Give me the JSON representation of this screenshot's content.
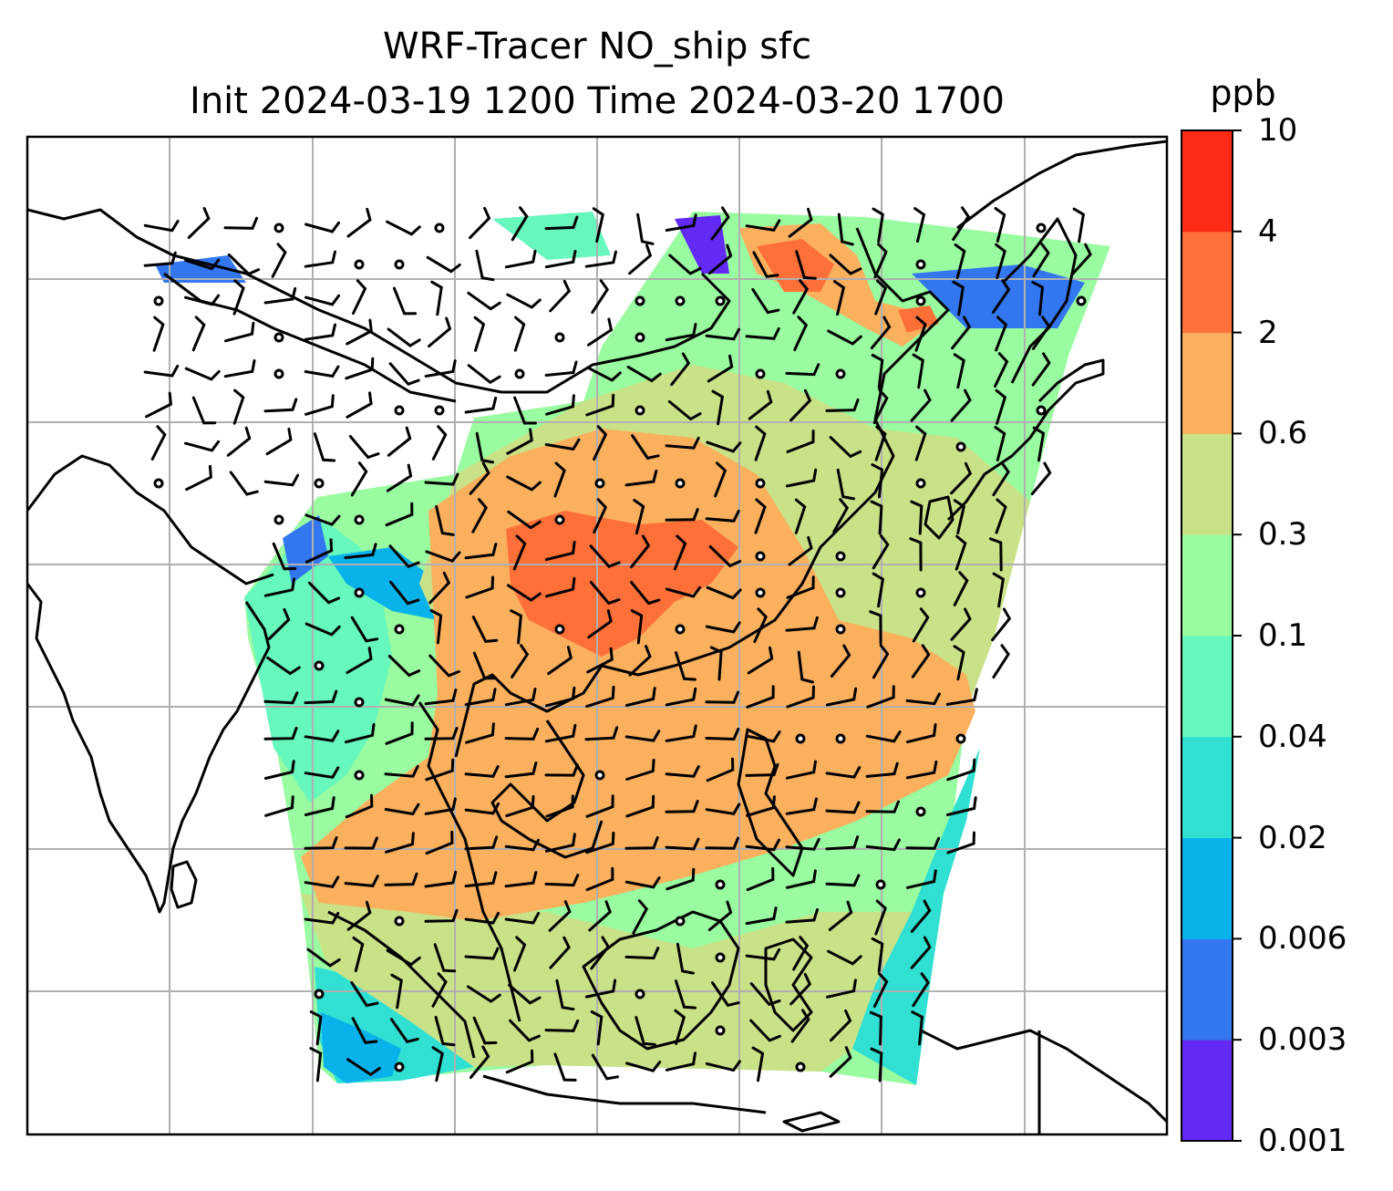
{
  "title": {
    "line1": "WRF-Tracer NO_ship sfc",
    "line2": "Init 2024-03-19 1200 Time 2024-03-20 1700"
  },
  "colorbar": {
    "unit": "ppb",
    "levels": [
      "0.001",
      "0.003",
      "0.006",
      "0.02",
      "0.04",
      "0.1",
      "0.3",
      "0.6",
      "2",
      "4",
      "10"
    ],
    "colors": [
      "#6329f5",
      "#3277f0",
      "#08b2ea",
      "#2fe0d3",
      "#66f8bc",
      "#99fca0",
      "#c9e287",
      "#fbb05e",
      "#ff7038",
      "#ff2b16"
    ]
  },
  "map": {
    "gridlines": true,
    "coastline_color": "#000000",
    "barb_color": "#000000",
    "gridline_color": "#b0b0b0",
    "field_cmap": "rainbow"
  }
}
